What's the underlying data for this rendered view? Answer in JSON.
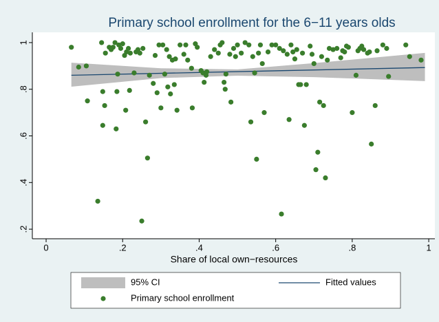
{
  "chart_data": {
    "type": "scatter",
    "title": "Primary school enrollment for the 6−11 years olds",
    "x_label": "Share of local own−resources",
    "xlim": [
      -0.036,
      1.016
    ],
    "ylim": [
      0.159,
      1.044
    ],
    "xticks": [
      0,
      {
        "value": 0.2,
        "label": ".2"
      },
      {
        "value": 0.4,
        "label": ".4"
      },
      {
        "value": 0.6,
        "label": ".6"
      },
      {
        "value": 0.8,
        "label": ".8"
      },
      1
    ],
    "yticks": [
      {
        "value": 0.2,
        "label": ".2"
      },
      {
        "value": 0.4,
        "label": ".4"
      },
      {
        "value": 0.6,
        "label": ".6"
      },
      {
        "value": 0.8,
        "label": ".8"
      },
      1
    ],
    "legend": "bottom",
    "series": [
      {
        "name": "95% CI",
        "type": "band",
        "color": "#bebebe",
        "x": [
          0.066,
          0.3,
          0.5,
          0.7,
          0.99
        ],
        "lower": [
          0.811,
          0.848,
          0.858,
          0.852,
          0.835
        ],
        "upper": [
          0.914,
          0.89,
          0.885,
          0.912,
          0.956
        ]
      },
      {
        "name": "Fitted values",
        "type": "line",
        "color": "#1a476f",
        "x": [
          0.066,
          0.99
        ],
        "values": [
          0.86,
          0.893
        ]
      },
      {
        "name": "Primary school enrollment",
        "type": "scatter",
        "color": "#3a7d2c",
        "x": [
          0.066,
          0.085,
          0.105,
          0.108,
          0.135,
          0.145,
          0.148,
          0.148,
          0.153,
          0.155,
          0.165,
          0.17,
          0.175,
          0.18,
          0.183,
          0.185,
          0.187,
          0.19,
          0.195,
          0.2,
          0.205,
          0.208,
          0.21,
          0.215,
          0.218,
          0.22,
          0.23,
          0.235,
          0.24,
          0.245,
          0.25,
          0.253,
          0.26,
          0.265,
          0.27,
          0.28,
          0.285,
          0.29,
          0.295,
          0.3,
          0.305,
          0.31,
          0.315,
          0.318,
          0.322,
          0.325,
          0.33,
          0.335,
          0.338,
          0.342,
          0.35,
          0.36,
          0.365,
          0.37,
          0.38,
          0.382,
          0.39,
          0.395,
          0.405,
          0.41,
          0.413,
          0.418,
          0.42,
          0.43,
          0.44,
          0.45,
          0.455,
          0.46,
          0.465,
          0.468,
          0.47,
          0.48,
          0.483,
          0.49,
          0.495,
          0.5,
          0.51,
          0.52,
          0.53,
          0.535,
          0.54,
          0.545,
          0.55,
          0.555,
          0.56,
          0.565,
          0.57,
          0.58,
          0.59,
          0.6,
          0.61,
          0.615,
          0.62,
          0.63,
          0.635,
          0.64,
          0.645,
          0.65,
          0.655,
          0.66,
          0.665,
          0.67,
          0.675,
          0.68,
          0.69,
          0.695,
          0.7,
          0.705,
          0.71,
          0.715,
          0.72,
          0.725,
          0.73,
          0.735,
          0.74,
          0.75,
          0.76,
          0.77,
          0.775,
          0.78,
          0.785,
          0.79,
          0.8,
          0.81,
          0.815,
          0.82,
          0.825,
          0.83,
          0.84,
          0.845,
          0.85,
          0.86,
          0.865,
          0.88,
          0.89,
          0.895,
          0.94,
          0.95,
          0.98
        ],
        "values": [
          0.98,
          0.895,
          0.9,
          0.75,
          0.32,
          1.0,
          0.79,
          0.645,
          0.73,
          0.955,
          0.98,
          0.97,
          0.98,
          1.0,
          0.63,
          0.79,
          0.865,
          0.99,
          0.975,
          0.995,
          0.945,
          0.71,
          0.96,
          0.975,
          0.795,
          0.955,
          0.87,
          0.96,
          0.97,
          0.955,
          0.235,
          0.975,
          0.66,
          0.505,
          0.86,
          0.825,
          0.945,
          0.785,
          0.99,
          0.72,
          0.99,
          0.865,
          0.97,
          0.81,
          0.94,
          0.78,
          0.925,
          0.82,
          0.93,
          0.71,
          0.99,
          0.95,
          0.99,
          0.925,
          0.89,
          0.72,
          0.995,
          0.98,
          0.88,
          0.87,
          0.83,
          0.86,
          0.875,
          0.94,
          0.97,
          0.955,
          0.99,
          1.0,
          0.83,
          0.8,
          0.865,
          0.95,
          0.745,
          0.975,
          0.94,
          0.99,
          0.955,
          1.0,
          0.99,
          0.66,
          0.94,
          0.87,
          0.5,
          0.955,
          0.99,
          0.91,
          0.7,
          0.96,
          0.99,
          0.99,
          0.975,
          0.265,
          0.965,
          0.95,
          0.67,
          0.99,
          0.96,
          0.93,
          0.97,
          0.82,
          0.82,
          0.955,
          0.645,
          0.82,
          0.985,
          0.95,
          0.91,
          0.455,
          0.53,
          0.745,
          0.94,
          0.73,
          0.42,
          0.925,
          0.975,
          0.97,
          0.975,
          0.935,
          0.965,
          0.96,
          0.985,
          0.98,
          0.7,
          0.86,
          0.965,
          0.975,
          0.985,
          0.97,
          0.955,
          0.96,
          0.565,
          0.73,
          0.965,
          0.99,
          0.975,
          0.855,
          0.99,
          0.94,
          0.925
        ]
      }
    ]
  }
}
